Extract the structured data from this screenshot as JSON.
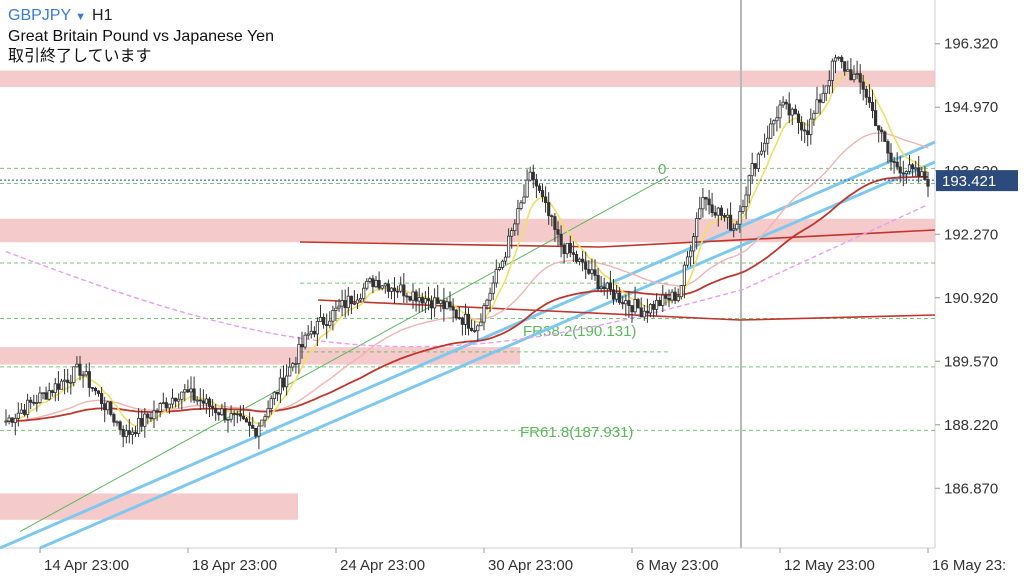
{
  "header": {
    "symbol": "GBPJPY",
    "timeframe": "H1",
    "subtitle": "Great Britain Pound vs Japanese Yen",
    "status": "取引終了しています"
  },
  "colors": {
    "up_down_candle": "#333333",
    "zone": "#f3c1c1",
    "channel": "#7ec8ee",
    "ema_red": "#c0362c",
    "sma_yellow": "#f0e060",
    "ma_pink": "#f0b4b4",
    "ma_violet": "#e59ef0",
    "fib": "#5cb85c",
    "current_price_bg": "#2c4b7c"
  },
  "chart_data": {
    "type": "candlestick",
    "ylim": [
      185.6,
      197.25
    ],
    "y_ticks": [
      "196.320",
      "194.970",
      "193.620",
      "192.270",
      "190.920",
      "189.570",
      "188.220",
      "186.870"
    ],
    "x_ticks": [
      "14 Apr 23:00",
      "18 Apr 23:00",
      "24 Apr 23:00",
      "30 Apr 23:00",
      "6 May 23:00",
      "12 May 23:00",
      "16 May 23:"
    ],
    "current_price": "193.421",
    "fib_labels": {
      "zero": "0",
      "fr382": "FR38.2(190.131)",
      "fr618": "FR61.8(187.931)"
    },
    "fib_levels": [
      193.67,
      193.35,
      191.66,
      190.48,
      189.45,
      188.1
    ],
    "fib_ext_levels": [
      191.23,
      189.77
    ],
    "zones": [
      {
        "from": 195.4,
        "to": 195.75
      },
      {
        "from": 192.1,
        "to": 192.6
      },
      {
        "from": 189.5,
        "to": 189.87
      },
      {
        "from": 186.2,
        "to": 186.76
      }
    ],
    "key_points": [
      {
        "t": 0,
        "price": 188.3
      },
      {
        "t": 0.08,
        "price": 189.4
      },
      {
        "t": 0.13,
        "price": 188.0
      },
      {
        "t": 0.19,
        "price": 188.95
      },
      {
        "t": 0.27,
        "price": 188.1
      },
      {
        "t": 0.33,
        "price": 190.2
      },
      {
        "t": 0.4,
        "price": 191.3
      },
      {
        "t": 0.47,
        "price": 190.8
      },
      {
        "t": 0.51,
        "price": 190.3
      },
      {
        "t": 0.54,
        "price": 191.8
      },
      {
        "t": 0.57,
        "price": 193.55
      },
      {
        "t": 0.6,
        "price": 192.1
      },
      {
        "t": 0.65,
        "price": 191.1
      },
      {
        "t": 0.69,
        "price": 190.65
      },
      {
        "t": 0.73,
        "price": 191.0
      },
      {
        "t": 0.755,
        "price": 193.1
      },
      {
        "t": 0.79,
        "price": 192.4
      },
      {
        "t": 0.81,
        "price": 193.7
      },
      {
        "t": 0.84,
        "price": 195.0
      },
      {
        "t": 0.87,
        "price": 194.5
      },
      {
        "t": 0.9,
        "price": 196.0
      },
      {
        "t": 0.93,
        "price": 195.4
      },
      {
        "t": 0.96,
        "price": 193.8
      },
      {
        "t": 1,
        "price": 193.42
      }
    ]
  }
}
